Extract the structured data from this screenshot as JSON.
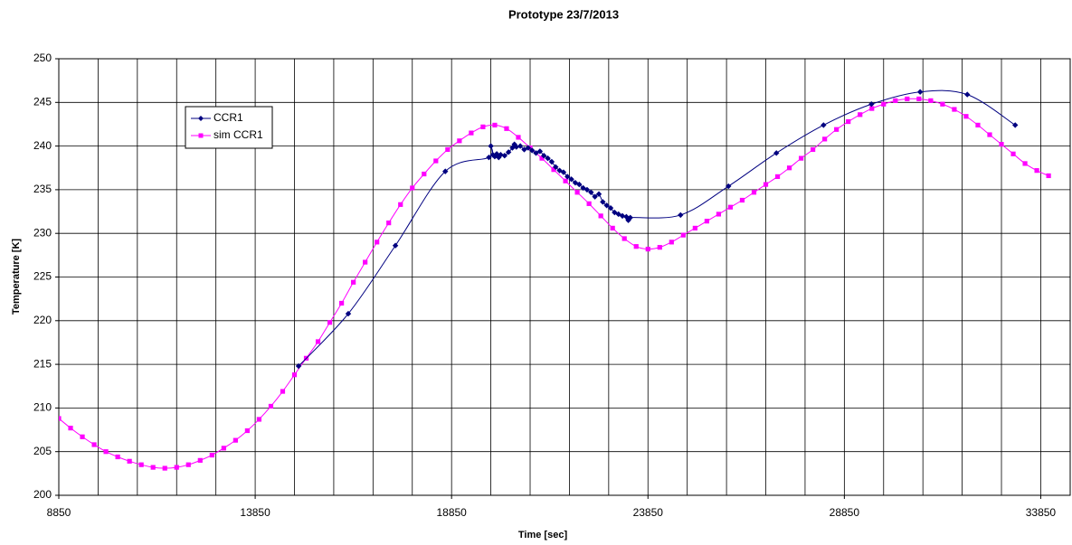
{
  "chart_data": {
    "type": "line",
    "title": "Prototype 23/7/2013",
    "xlabel": "Time [sec]",
    "ylabel": "Temperature [K]",
    "xlim": [
      8850,
      34600
    ],
    "ylim": [
      200,
      250
    ],
    "xticks": [
      8850,
      13850,
      18850,
      23850,
      28850,
      33850
    ],
    "xgrid_lines": [
      9850,
      10850,
      11850,
      12850,
      14850,
      15850,
      16850,
      17850,
      19850,
      20850,
      21850,
      22850,
      24850,
      25850,
      26850,
      27850,
      29850,
      30850,
      31850,
      32850
    ],
    "yticks": [
      200,
      205,
      210,
      215,
      220,
      225,
      230,
      235,
      240,
      245,
      250
    ],
    "grid": true,
    "smooth": true,
    "series": [
      {
        "name": "CCR1",
        "color": "#000080",
        "marker": "diamond",
        "x": [
          14955,
          16220,
          17420,
          18690,
          19800,
          19850,
          19900,
          19950,
          20000,
          20050,
          20100,
          20200,
          20300,
          20400,
          20450,
          20500,
          20600,
          20700,
          20800,
          20900,
          21000,
          21100,
          21200,
          21300,
          21400,
          21500,
          21600,
          21700,
          21800,
          21900,
          22000,
          22100,
          22200,
          22300,
          22400,
          22500,
          22600,
          22700,
          22800,
          22900,
          23000,
          23100,
          23200,
          23300,
          23350,
          23400,
          24680,
          25900,
          27120,
          28320,
          29540,
          30780,
          31980,
          33200
        ],
        "values": [
          214.8,
          220.8,
          228.6,
          237.1,
          238.7,
          240.0,
          239.0,
          238.8,
          239.1,
          238.7,
          239.0,
          238.9,
          239.3,
          239.8,
          240.2,
          239.9,
          240.0,
          239.6,
          239.8,
          239.5,
          239.2,
          239.4,
          238.9,
          238.6,
          238.2,
          237.6,
          237.2,
          237.0,
          236.5,
          236.2,
          235.8,
          235.6,
          235.2,
          235.0,
          234.7,
          234.2,
          234.5,
          233.6,
          233.2,
          232.9,
          232.4,
          232.2,
          232.0,
          231.9,
          231.5,
          231.8,
          232.1,
          235.4,
          239.2,
          242.4,
          244.8,
          246.2,
          245.9,
          242.4
        ]
      },
      {
        "name": "sim CCR1",
        "color": "#ff00ff",
        "marker": "square",
        "x": [
          8850,
          9150,
          9450,
          9750,
          10050,
          10350,
          10650,
          10950,
          11250,
          11550,
          11850,
          12150,
          12450,
          12750,
          13050,
          13350,
          13650,
          13950,
          14250,
          14550,
          14850,
          15150,
          15450,
          15750,
          16050,
          16350,
          16650,
          16950,
          17250,
          17550,
          17850,
          18150,
          18450,
          18750,
          19050,
          19350,
          19650,
          19950,
          20250,
          20550,
          20850,
          21150,
          21450,
          21750,
          22050,
          22350,
          22650,
          22950,
          23250,
          23550,
          23850,
          24150,
          24450,
          24750,
          25050,
          25350,
          25650,
          25950,
          26250,
          26550,
          26850,
          27150,
          27450,
          27750,
          28050,
          28350,
          28650,
          28950,
          29250,
          29550,
          29850,
          30150,
          30450,
          30750,
          31050,
          31350,
          31650,
          31950,
          32250,
          32550,
          32850,
          33150,
          33450,
          33750,
          34050
        ],
        "values": [
          208.8,
          207.7,
          206.7,
          205.8,
          205.0,
          204.4,
          203.9,
          203.5,
          203.2,
          203.1,
          203.2,
          203.5,
          204.0,
          204.6,
          205.4,
          206.3,
          207.4,
          208.7,
          210.2,
          211.9,
          213.8,
          215.7,
          217.6,
          219.8,
          222.0,
          224.4,
          226.7,
          229.0,
          231.2,
          233.3,
          235.2,
          236.8,
          238.3,
          239.6,
          240.6,
          241.5,
          242.2,
          242.4,
          242.0,
          241.0,
          239.8,
          238.6,
          237.3,
          236.0,
          234.7,
          233.4,
          232.0,
          230.6,
          229.4,
          228.5,
          228.2,
          228.4,
          229.0,
          229.8,
          230.6,
          231.4,
          232.2,
          233.0,
          233.8,
          234.7,
          235.6,
          236.5,
          237.5,
          238.6,
          239.6,
          240.8,
          241.9,
          242.8,
          243.6,
          244.3,
          244.8,
          245.2,
          245.4,
          245.4,
          245.2,
          244.8,
          244.2,
          243.4,
          242.4,
          241.3,
          240.2,
          239.1,
          238.0,
          237.2,
          236.6
        ]
      }
    ]
  }
}
